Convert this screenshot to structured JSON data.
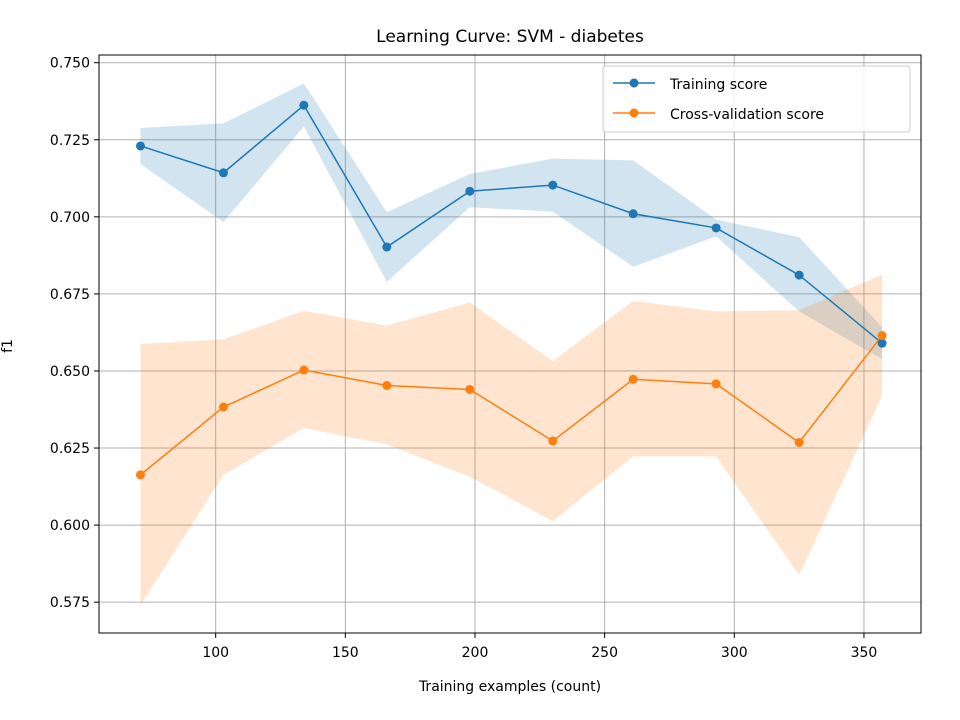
{
  "chart_data": {
    "type": "line",
    "title": "Learning Curve: SVM - diabetes",
    "xlabel": "Training examples (count)",
    "ylabel": "f1",
    "xlim": [
      55,
      372
    ],
    "ylim": [
      0.565,
      0.7525
    ],
    "xticks": [
      100,
      150,
      200,
      250,
      300,
      350
    ],
    "yticks": [
      0.575,
      0.6,
      0.625,
      0.65,
      0.675,
      0.7,
      0.725,
      0.75
    ],
    "ytick_labels": [
      "0.575",
      "0.600",
      "0.625",
      "0.650",
      "0.675",
      "0.700",
      "0.725",
      "0.750"
    ],
    "grid": true,
    "legend_position": "top-right",
    "x": [
      71,
      103,
      134,
      166,
      198,
      230,
      261,
      293,
      325,
      357
    ],
    "series": [
      {
        "name": "Training score",
        "color": "#1f77b4",
        "band_color": "#1f77b4",
        "values": [
          0.723,
          0.7143,
          0.7362,
          0.6902,
          0.7083,
          0.7103,
          0.701,
          0.6964,
          0.6811,
          0.659
        ],
        "lower": [
          0.7172,
          0.6983,
          0.7293,
          0.6789,
          0.7031,
          0.7017,
          0.6838,
          0.6937,
          0.6693,
          0.6538
        ],
        "upper": [
          0.7288,
          0.7303,
          0.7433,
          0.7015,
          0.7139,
          0.7189,
          0.7183,
          0.6991,
          0.6934,
          0.6642
        ]
      },
      {
        "name": "Cross-validation score",
        "color": "#ff7f0e",
        "band_color": "#ff7f0e",
        "values": [
          0.6163,
          0.6383,
          0.6503,
          0.6453,
          0.644,
          0.6273,
          0.6473,
          0.6458,
          0.6268,
          0.6615
        ],
        "lower": [
          0.574,
          0.6163,
          0.6315,
          0.6262,
          0.6157,
          0.6013,
          0.6223,
          0.6223,
          0.5838,
          0.642
        ],
        "upper": [
          0.6587,
          0.6603,
          0.6695,
          0.6647,
          0.6722,
          0.6532,
          0.6727,
          0.6693,
          0.6697,
          0.6812
        ]
      }
    ]
  }
}
